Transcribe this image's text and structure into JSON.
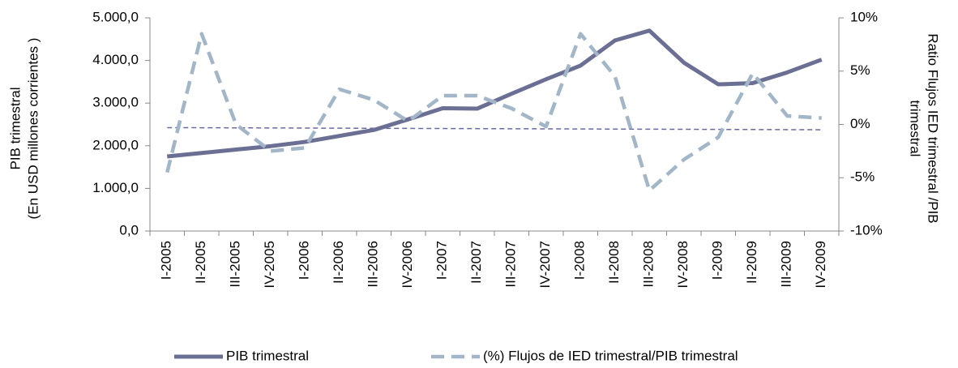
{
  "chart_data": {
    "type": "line",
    "categories": [
      "I-2005",
      "II-2005",
      "III-2005",
      "IV-2005",
      "I-2006",
      "II-2006",
      "III-2006",
      "IV-2006",
      "I-2007",
      "II-2007",
      "III-2007",
      "IV-2007",
      "I-2008",
      "II-2008",
      "III-2008",
      "IV-2008",
      "I-2009",
      "II-2009",
      "III-2009",
      "IV-2009"
    ],
    "series": [
      {
        "name": "PIB trimestral",
        "color": "#6b6f94",
        "values": [
          1750,
          1830,
          1910,
          1990,
          2090,
          2230,
          2370,
          2620,
          2880,
          2870,
          3220,
          3560,
          3880,
          4470,
          4700,
          3950,
          3440,
          3470,
          3720,
          4020
        ]
      },
      {
        "name": "(%) Flujos de IED trimestral/PIB trimestral",
        "color": "#a2b6c8",
        "axis": "y2",
        "dashed": true,
        "values": [
          -4.5,
          8.5,
          0,
          -2.5,
          -2.2,
          3.3,
          2.3,
          0.3,
          2.7,
          2.7,
          1.5,
          -0.2,
          8.5,
          4.5,
          -6.2,
          -3.3,
          -1.2,
          4.8,
          0.8,
          0.6
        ]
      }
    ],
    "trendline": {
      "axis": "y2",
      "color": "#6a6aa0",
      "values": [
        -0.3,
        -0.5
      ]
    },
    "ylabel": [
      "PIB trimestral",
      "(En USD millones corrientes )"
    ],
    "y2label": [
      "Ratio Flujos  IED trimestral /PIB",
      "trimestral"
    ],
    "ylim": [
      0,
      5000
    ],
    "yticks": [
      {
        "value": 0,
        "label": "0,0"
      },
      {
        "value": 1000,
        "label": "1.000,0"
      },
      {
        "value": 2000,
        "label": "2.000,0"
      },
      {
        "value": 3000,
        "label": "3.000,0"
      },
      {
        "value": 4000,
        "label": "4.000,0"
      },
      {
        "value": 5000,
        "label": "5.000,0"
      }
    ],
    "y2lim": [
      -10,
      10
    ],
    "y2ticks": [
      {
        "value": -10,
        "label": "-10%"
      },
      {
        "value": -5,
        "label": "-5%"
      },
      {
        "value": 0,
        "label": "0%"
      },
      {
        "value": 5,
        "label": "5%"
      },
      {
        "value": 10,
        "label": "10%"
      }
    ],
    "legend": "bottom"
  }
}
